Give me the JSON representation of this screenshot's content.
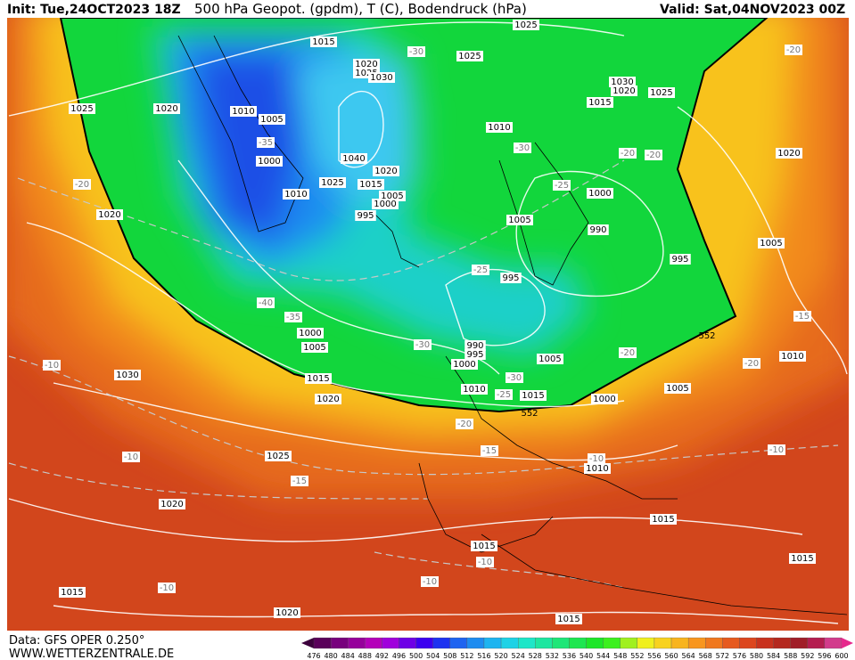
{
  "header": {
    "init": "Init: Tue,24OCT2023 18Z",
    "title": "500 hPa Geopot. (gpdm), T (C), Bodendruck (hPa)",
    "valid": "Valid: Sat,04NOV2023 00Z"
  },
  "footer": {
    "data_source": "Data: GFS OPER 0.250°",
    "website": "WWW.WETTERZENTRALE.DE"
  },
  "colorbar": {
    "labels": [
      476,
      480,
      484,
      488,
      492,
      496,
      500,
      504,
      508,
      512,
      516,
      520,
      524,
      528,
      532,
      536,
      540,
      544,
      548,
      552,
      556,
      560,
      564,
      568,
      572,
      576,
      580,
      584,
      588,
      592,
      596,
      600
    ]
  },
  "map": {
    "isobar_labels": [
      1015,
      1025,
      1025,
      1020,
      1025,
      1030,
      1025,
      1020,
      1010,
      1005,
      1030,
      1020,
      1025,
      1015,
      1010,
      1000,
      1040,
      1020,
      1025,
      1015,
      1010,
      1005,
      1000,
      995,
      1000,
      1005,
      990,
      995,
      995,
      1020,
      1020,
      1005,
      1000,
      1005,
      990,
      995,
      1000,
      1005,
      1010,
      1015,
      1020,
      1010,
      1015,
      1000,
      1005,
      1030,
      1025,
      1010,
      1015,
      1020,
      1015,
      1015,
      1015,
      1020,
      1015
    ],
    "temperature_labels": [
      -30,
      -35,
      -30,
      -20,
      -20,
      -25,
      -20,
      -25,
      -40,
      -35,
      -30,
      -30,
      -25,
      -20,
      -20,
      -15,
      -20,
      -20,
      -15,
      -10,
      -10,
      -10,
      -10,
      -15,
      -10,
      -10,
      -10
    ],
    "geopotential_labels": [
      552,
      552
    ]
  }
}
